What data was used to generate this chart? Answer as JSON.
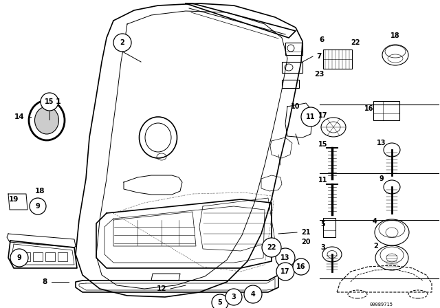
{
  "bg_color": "#ffffff",
  "diagram_code": "00089715",
  "figsize": [
    6.4,
    4.48
  ],
  "dpi": 100
}
